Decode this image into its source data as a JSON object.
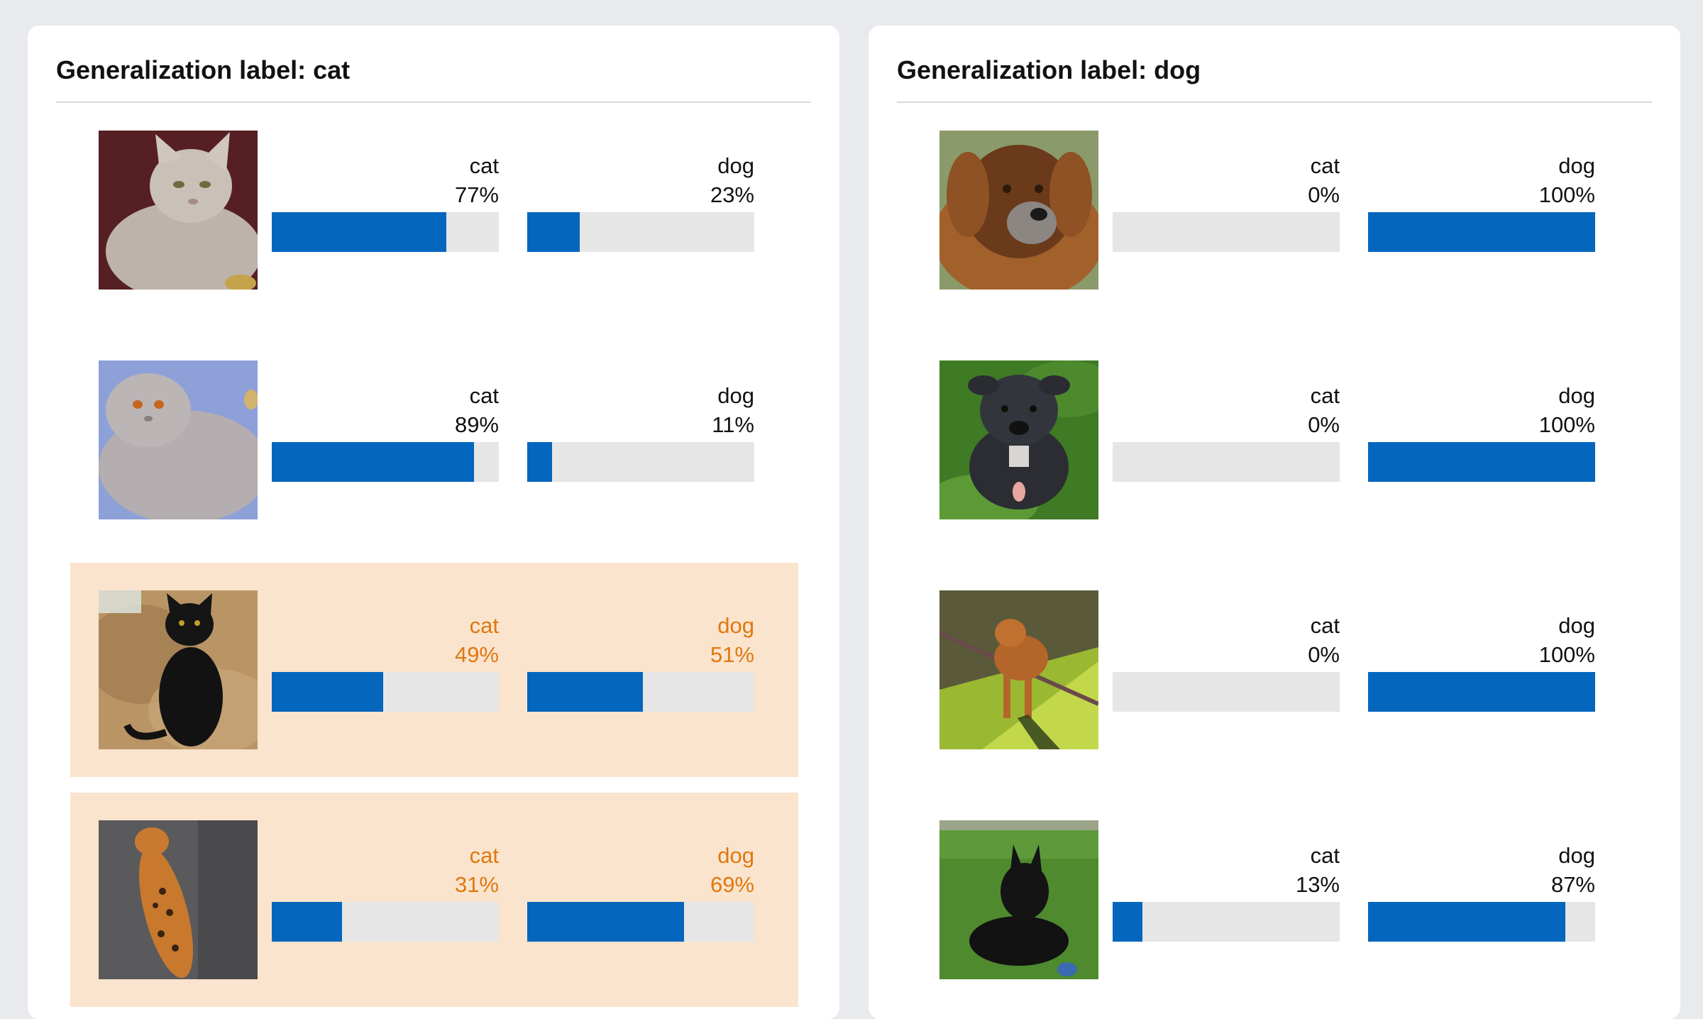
{
  "colors": {
    "page_background": "#e9eaed",
    "panel_background": "#ffffff",
    "bar_fill": "#0566bd",
    "bar_track": "#e6e6e6",
    "highlight_background": "#fae4ce",
    "highlight_text": "#e0780f"
  },
  "panels": [
    {
      "title": "Generalization label: cat",
      "rows": [
        {
          "image": "sphynx-cat-photo",
          "highlighted": false,
          "scores": [
            {
              "label": "cat",
              "pct_text": "77%",
              "value": 0.77
            },
            {
              "label": "dog",
              "pct_text": "23%",
              "value": 0.23
            }
          ]
        },
        {
          "image": "persian-cat-photo",
          "highlighted": false,
          "scores": [
            {
              "label": "cat",
              "pct_text": "89%",
              "value": 0.89
            },
            {
              "label": "dog",
              "pct_text": "11%",
              "value": 0.11
            }
          ]
        },
        {
          "image": "black-cat-photo",
          "highlighted": true,
          "scores": [
            {
              "label": "cat",
              "pct_text": "49%",
              "value": 0.49
            },
            {
              "label": "dog",
              "pct_text": "51%",
              "value": 0.51
            }
          ]
        },
        {
          "image": "bengal-cat-photo",
          "highlighted": true,
          "scores": [
            {
              "label": "cat",
              "pct_text": "31%",
              "value": 0.31
            },
            {
              "label": "dog",
              "pct_text": "69%",
              "value": 0.69
            }
          ]
        }
      ]
    },
    {
      "title": "Generalization label: dog",
      "rows": [
        {
          "image": "shaggy-dog-photo",
          "highlighted": false,
          "scores": [
            {
              "label": "cat",
              "pct_text": "0%",
              "value": 0.0
            },
            {
              "label": "dog",
              "pct_text": "100%",
              "value": 1.0
            }
          ]
        },
        {
          "image": "staffordshire-dog-photo",
          "highlighted": false,
          "scores": [
            {
              "label": "cat",
              "pct_text": "0%",
              "value": 0.0
            },
            {
              "label": "dog",
              "pct_text": "100%",
              "value": 1.0
            }
          ]
        },
        {
          "image": "shiba-dog-photo",
          "highlighted": false,
          "scores": [
            {
              "label": "cat",
              "pct_text": "0%",
              "value": 0.0
            },
            {
              "label": "dog",
              "pct_text": "100%",
              "value": 1.0
            }
          ]
        },
        {
          "image": "scottish-terrier-photo",
          "highlighted": false,
          "scores": [
            {
              "label": "cat",
              "pct_text": "13%",
              "value": 0.13
            },
            {
              "label": "dog",
              "pct_text": "87%",
              "value": 0.87
            }
          ]
        }
      ]
    }
  ]
}
